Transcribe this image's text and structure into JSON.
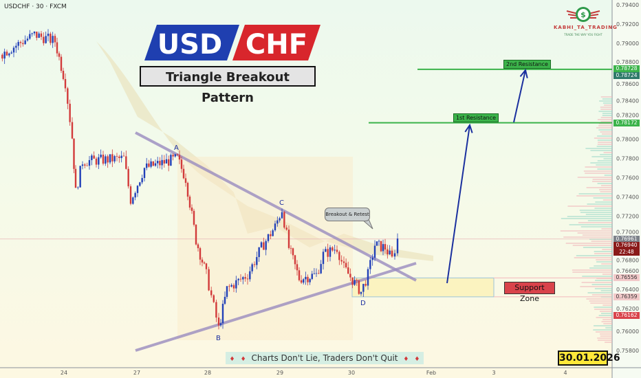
{
  "header": {
    "symbol": "USDCHF · 30 · FXCM"
  },
  "title": {
    "base": "USD",
    "quote": "CHF",
    "subtitle": "Triangle Breakout Pattern"
  },
  "brand": {
    "name": "KABHI_TA_TRADING",
    "tagline": "TRADE THE WAY YOU FIGHT",
    "icon": "dollar-coin-wings-icon"
  },
  "annotations": {
    "resistance2": "2nd Resistance",
    "resistance1": "1st Resistance",
    "support": "Support  Zone",
    "bubble": "Breakout & Retest",
    "points": [
      "A",
      "B",
      "C",
      "D"
    ],
    "motto": "Charts Don't Lie, Traders Don't Quit",
    "date": "30.01.2026"
  },
  "colors": {
    "bull": "#2140b8",
    "bear": "#d23a3a",
    "resistance": "#3bb34a",
    "arrow": "#1a2f9e",
    "triangle": "#9a8cc0",
    "support_fill": "#fbf3c0"
  },
  "chart_data": {
    "type": "candlestick",
    "symbol": "USDCHF",
    "timeframe": "30",
    "ylim": [
      0.758,
      0.794
    ],
    "y_ticks": [
      "0.79400",
      "0.79200",
      "0.79000",
      "0.78800",
      "0.78600",
      "0.78400",
      "0.78200",
      "0.78000",
      "0.77800",
      "0.77600",
      "0.77400",
      "0.77200",
      "0.77000",
      "0.76800",
      "0.76600",
      "0.76400",
      "0.76200",
      "0.76000",
      "0.75800"
    ],
    "x_ticks": [
      "24",
      "27",
      "28",
      "29",
      "30",
      "Feb",
      "3",
      "4"
    ],
    "close_path": [
      0.7888,
      0.7909,
      0.7902,
      0.7859,
      0.7802,
      0.7745,
      0.7777,
      0.778,
      0.7737,
      0.777,
      0.778,
      0.7759,
      0.7695,
      0.7659,
      0.7603,
      0.7644,
      0.7659,
      0.7687,
      0.7709,
      0.7727,
      0.7687,
      0.7655,
      0.7659,
      0.768,
      0.7687,
      0.7666,
      0.7641,
      0.7659,
      0.769,
      0.7687,
      0.7675,
      0.7696
    ],
    "levels": {
      "resistance2": 0.78728,
      "resistance2_b": 0.78724,
      "resistance1": 0.78172,
      "support_top": 0.76556,
      "support_bottom": 0.76359
    },
    "price_labels": [
      {
        "value": "0.78728",
        "color": "#3bb34a"
      },
      {
        "value": "0.78724",
        "color": "#2f7a6a"
      },
      {
        "value": "0.78172",
        "color": "#3bb34a"
      },
      {
        "value": "0.76961",
        "color": "#7c8189"
      },
      {
        "value": "0.76940",
        "color": "#8a1a1a",
        "sub": "22:48"
      },
      {
        "value": "0.76556",
        "color": "#f2c9c9",
        "text": "#333"
      },
      {
        "value": "0.76359",
        "color": "#f2c9c9",
        "text": "#333"
      },
      {
        "value": "0.76162",
        "color": "#d9434b"
      }
    ]
  }
}
